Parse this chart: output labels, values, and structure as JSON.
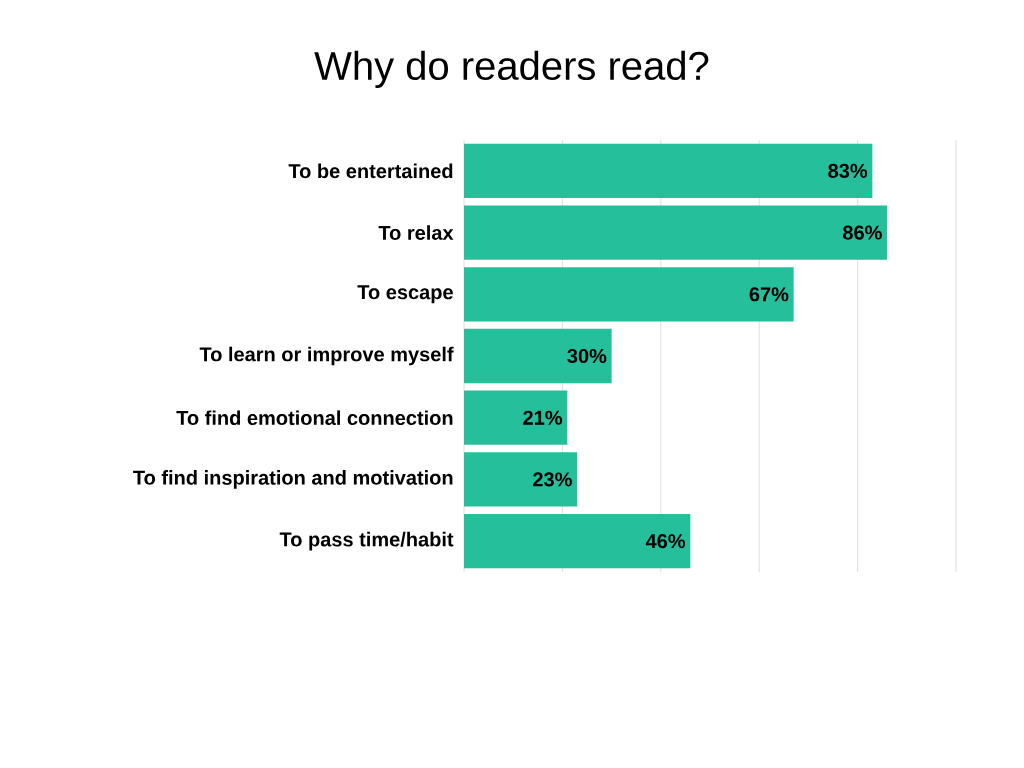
{
  "chart_data": {
    "type": "bar",
    "orientation": "horizontal",
    "title": "Why do readers read?",
    "categories": [
      "To be entertained",
      "To relax",
      "To escape",
      "To learn or improve myself",
      "To find emotional connection",
      "To find inspiration and motivation",
      "To pass time/habit"
    ],
    "values": [
      83,
      86,
      67,
      30,
      21,
      23,
      46
    ],
    "value_labels": [
      "83%",
      "86%",
      "67%",
      "30%",
      "21%",
      "23%",
      "46%"
    ],
    "color": "#26bf9c",
    "xlim": [
      0,
      100
    ],
    "xticks": [
      {
        "value": 0,
        "label": null
      },
      {
        "value": 20,
        "label": null
      },
      {
        "value": 40,
        "label": null
      },
      {
        "value": 60,
        "label": null
      },
      {
        "value": 80,
        "label": null
      },
      {
        "value": 100,
        "label": null
      }
    ],
    "grid": "x",
    "tick_labels": "y"
  }
}
